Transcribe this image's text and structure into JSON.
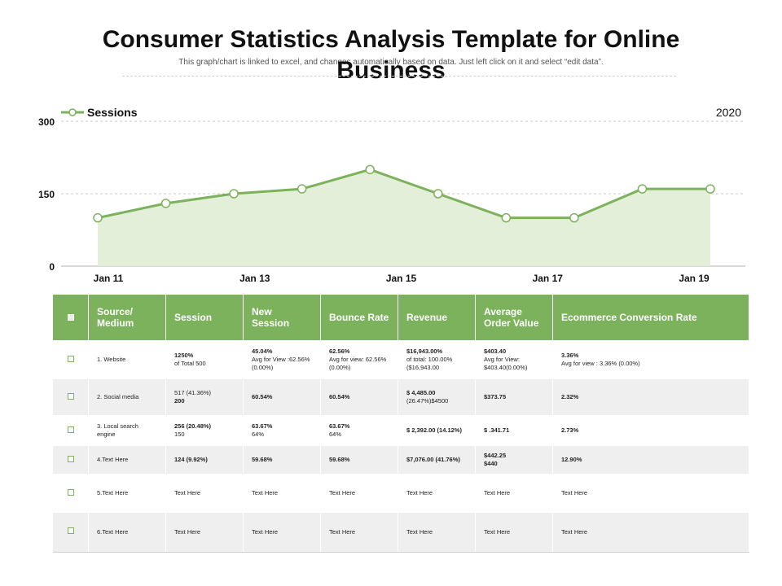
{
  "header": {
    "title_line1": "Consumer Statistics Analysis Template for Online",
    "title_line2": "Business",
    "subtitle": "This graph/chart is linked to excel, and changes automatically based on data. Just left click on it and select “edit data”."
  },
  "chart_data": {
    "type": "area",
    "title": "",
    "year_label": "2020",
    "legend": {
      "placement": "top-left",
      "label": "Sessions"
    },
    "series": [
      {
        "name": "Sessions",
        "values": [
          100,
          130,
          150,
          160,
          200,
          150,
          100,
          100,
          160,
          160
        ]
      }
    ],
    "x_ticks": [
      "Jan 11",
      "Jan 13",
      "Jan 15",
      "Jan 17",
      "Jan 19"
    ],
    "y_ticks": [
      "0",
      "150",
      "300"
    ],
    "ylim": [
      0,
      300
    ],
    "grid": true,
    "colors": {
      "line": "#7cb25b",
      "fill": "#e3efd8",
      "grid": "#c8c8c8"
    }
  },
  "table": {
    "headers": [
      "Source/ Medium",
      "Session",
      "New Session",
      "Bounce Rate",
      "Revenue",
      "Average Order Value",
      "Ecommerce Conversion Rate"
    ],
    "rows": [
      {
        "source": "1. Website",
        "session_main": "1250%",
        "session_sub": "of Total 500",
        "new_main": "45.04%",
        "new_sub": "Avg for View :62.56% (0.00%)",
        "bounce_main": "62.56%",
        "bounce_sub": "Avg for view: 62.56%(0.00%)",
        "revenue_main": "$16,943.00%",
        "revenue_sub": "of total: 100.00%($16,943.00",
        "aov_main": "$403.40",
        "aov_sub": "Avg for View: $403.40(0.00%)",
        "ecr_main": "3.36%",
        "ecr_sub": "Avg for view : 3.36% (0.00%)"
      },
      {
        "source": "2. Social media",
        "session_main": "517    (41.36%)",
        "session_sub": "200",
        "new_main": "60.54%",
        "new_sub": "",
        "bounce_main": "60.54%",
        "bounce_sub": "",
        "revenue_main": "$ 4,485.00",
        "revenue_sub": "(26.47%)$4500",
        "aov_main": "$373.75",
        "aov_sub": "",
        "ecr_main": "2.32%",
        "ecr_sub": ""
      },
      {
        "source": "3. Local search engine",
        "session_main": "256  (20.48%)",
        "session_sub": "150",
        "new_main": "63.67%",
        "new_sub": "64%",
        "bounce_main": "63.67%",
        "bounce_sub": "64%",
        "revenue_main": "$ 2,392.00  (14.12%)",
        "revenue_sub": "",
        "aov_main": "$ .341.71",
        "aov_sub": "",
        "ecr_main": "2.73%",
        "ecr_sub": ""
      },
      {
        "source": "4.Text Here",
        "session_main": "124  (9.92%)",
        "session_sub": "",
        "new_main": "59.68%",
        "new_sub": "",
        "bounce_main": "59.68%",
        "bounce_sub": "",
        "revenue_main": "$7,076.00  (41.76%)",
        "revenue_sub": "",
        "aov_main": "$442.25",
        "aov_sub": "$440",
        "ecr_main": "12.90%",
        "ecr_sub": ""
      },
      {
        "source": "5.Text Here",
        "session_main": "Text Here",
        "session_sub": "",
        "new_main": "Text Here",
        "new_sub": "",
        "bounce_main": "Text Here",
        "bounce_sub": "",
        "revenue_main": "Text Here",
        "revenue_sub": "",
        "aov_main": "Text Here",
        "aov_sub": "",
        "ecr_main": "Text Here",
        "ecr_sub": ""
      },
      {
        "source": "6.Text Here",
        "session_main": "Text Here",
        "session_sub": "",
        "new_main": "Text Here",
        "new_sub": "",
        "bounce_main": "Text Here",
        "bounce_sub": "",
        "revenue_main": "Text Here",
        "revenue_sub": "",
        "aov_main": "Text Here",
        "aov_sub": "",
        "ecr_main": "Text Here",
        "ecr_sub": ""
      }
    ]
  }
}
